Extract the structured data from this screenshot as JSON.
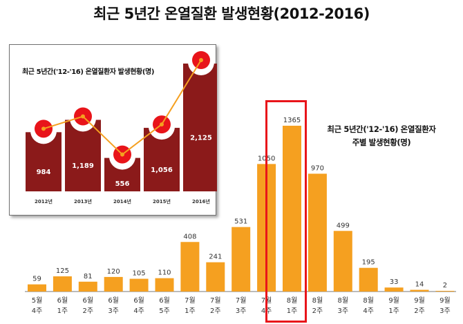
{
  "title": "최근 5년간 온열질환 발생현황(2012-2016)",
  "chart_data": [
    {
      "type": "bar",
      "title": "최근 5년간('12-'16) 온열질환자 주별 발생현황(명)",
      "title_lines": [
        "최근 5년간('12-'16) 온열질환자",
        "주별 발생현황(명)"
      ],
      "categories": [
        [
          "5월",
          "4주"
        ],
        [
          "6월",
          "1주"
        ],
        [
          "6월",
          "2주"
        ],
        [
          "6월",
          "3주"
        ],
        [
          "6월",
          "4주"
        ],
        [
          "6월",
          "5주"
        ],
        [
          "7월",
          "1주"
        ],
        [
          "7월",
          "2주"
        ],
        [
          "7월",
          "3주"
        ],
        [
          "7월",
          "4주"
        ],
        [
          "8월",
          "1주"
        ],
        [
          "8월",
          "2주"
        ],
        [
          "8월",
          "3주"
        ],
        [
          "8월",
          "4주"
        ],
        [
          "9월",
          "1주"
        ],
        [
          "9월",
          "2주"
        ],
        [
          "9월",
          "3주"
        ]
      ],
      "values": [
        59,
        125,
        81,
        120,
        105,
        110,
        408,
        241,
        531,
        1050,
        1365,
        970,
        499,
        195,
        33,
        14,
        2
      ],
      "value_labels": [
        "59",
        "125",
        "81",
        "120",
        "105",
        "110",
        "408",
        "241",
        "531",
        "1050",
        "1365",
        "970",
        "499",
        "195",
        "33",
        "14",
        "2"
      ],
      "highlight_category_index": 10,
      "bar_color": "#f5a020",
      "highlight_color": "#e8141a"
    },
    {
      "type": "bar",
      "title": "최근 5년간('12-'16) 온열질환자 발생현황(명)",
      "categories": [
        "2012년",
        "2013년",
        "2014년",
        "2015년",
        "2016년"
      ],
      "values": [
        984,
        1189,
        556,
        1056,
        2125
      ],
      "value_labels": [
        "984",
        "1,189",
        "556",
        "1,056",
        "2,125"
      ],
      "bar_color": "#8b1a1a",
      "line_color": "#f5a020",
      "marker_color": "#e8141a"
    }
  ]
}
